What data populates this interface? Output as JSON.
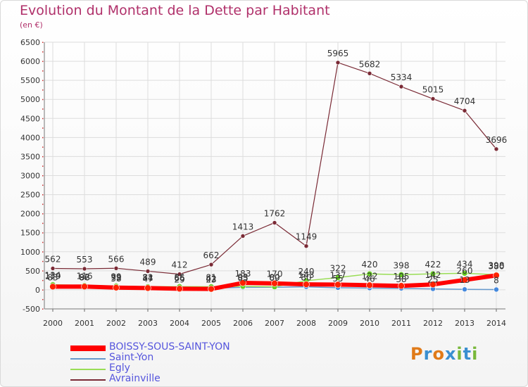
{
  "header": {
    "title": "Evolution du Montant de la Dette par Habitant",
    "unit": "(en €)"
  },
  "logo": {
    "text": "Proxiti"
  },
  "chart_data": {
    "type": "line",
    "title": "Evolution du Montant de la Dette par Habitant",
    "subtitle": "(en €)",
    "xlabel": "",
    "ylabel": "",
    "categories": [
      "2000",
      "2001",
      "2002",
      "2003",
      "2004",
      "2005",
      "2006",
      "2007",
      "2008",
      "2009",
      "2010",
      "2011",
      "2012",
      "2013",
      "2014"
    ],
    "ylim": [
      -500,
      6500
    ],
    "yticks": [
      -500,
      0,
      500,
      1000,
      1500,
      2000,
      2500,
      3000,
      3500,
      4000,
      4500,
      5000,
      5500,
      6000,
      6500
    ],
    "grid": true,
    "legend": "bottom-left",
    "series": [
      {
        "name": "BOISSY-SOUS-SAINT-YON",
        "color": "#ff0000",
        "values": [
          83,
          86,
          58,
          47,
          29,
          23,
          183,
          170,
          143,
          137,
          122,
          105,
          142,
          260,
          380
        ]
      },
      {
        "name": "Saint-Yon",
        "color": "#6699cc",
        "values": [
          119,
          92,
          79,
          74,
          66,
          42,
          65,
          69,
          80,
          55,
          46,
          38,
          25,
          13,
          8
        ]
      },
      {
        "name": "Egly",
        "color": "#99dd55",
        "values": [
          134,
          116,
          99,
          81,
          85,
          81,
          93,
          80,
          240,
          322,
          420,
          398,
          422,
          434,
          398
        ]
      },
      {
        "name": "Avrainville",
        "color": "#7a2a35",
        "values": [
          562,
          553,
          566,
          489,
          412,
          662,
          1413,
          1762,
          1149,
          5965,
          5682,
          5334,
          5015,
          4704,
          3696
        ]
      }
    ]
  }
}
